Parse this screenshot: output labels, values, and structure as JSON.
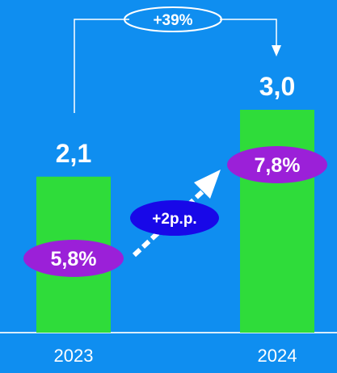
{
  "chart_data": {
    "type": "bar",
    "categories": [
      "2023",
      "2024"
    ],
    "values": [
      2.1,
      3.0
    ],
    "value_labels": [
      "2,1",
      "3,0"
    ],
    "share_labels": [
      "5,8%",
      "7,8%"
    ],
    "share_change_label": "+2p.p.",
    "growth_label": "+39%",
    "grid": false,
    "legend": "none"
  },
  "colors": {
    "background": "#0f8ef0",
    "bar": "#2fdc3a",
    "share_pill": "#9b20d8",
    "change_pill": "#1808e8",
    "text": "#ffffff",
    "arrow": "#ffffff",
    "baseline": "#d8ecfb"
  }
}
